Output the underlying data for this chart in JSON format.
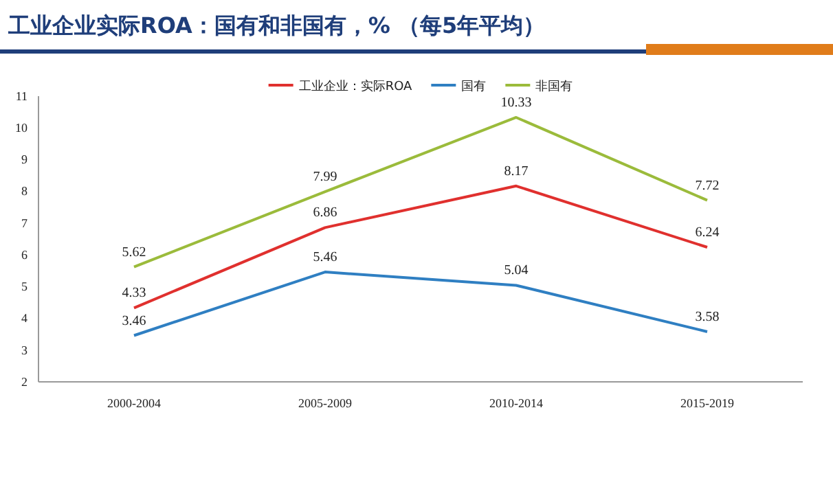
{
  "chart_data": {
    "type": "line",
    "title": "工业企业实际ROA：国有和非国有，%  （每5年平均）",
    "categories": [
      "2000-2004",
      "2005-2009",
      "2010-2014",
      "2015-2019"
    ],
    "series": [
      {
        "name": "工业企业：实际ROA",
        "color": "#e0302e",
        "values": [
          4.33,
          6.86,
          8.17,
          6.24
        ]
      },
      {
        "name": "国有",
        "color": "#2f7fc2",
        "values": [
          3.46,
          5.46,
          5.04,
          3.58
        ]
      },
      {
        "name": "非国有",
        "color": "#9bbb3b",
        "values": [
          5.62,
          7.99,
          10.33,
          7.72
        ]
      }
    ],
    "ylim": [
      2,
      11
    ],
    "yticks": [
      2,
      3,
      4,
      5,
      6,
      7,
      8,
      9,
      10,
      11
    ],
    "data_labels": true,
    "legend": "top",
    "marker": "none",
    "line_style": "solid"
  }
}
